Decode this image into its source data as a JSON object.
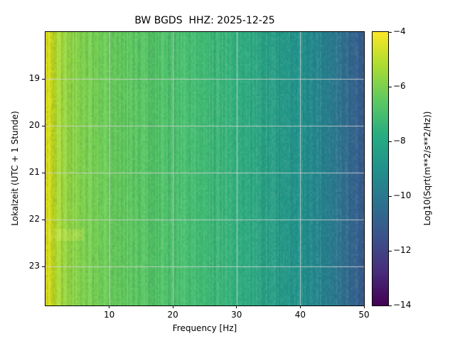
{
  "figure": {
    "title": "BW BGDS  HHZ: 2025-12-25",
    "background_color": "#ffffff"
  },
  "chart_data": {
    "type": "heatmap",
    "subtype": "spectrogram",
    "title": "BW BGDS  HHZ: 2025-12-25",
    "xlabel": "Frequency [Hz]",
    "ylabel": "Lokalzeit (UTC + 1 Stunde)",
    "x_ticks": [
      10,
      20,
      30,
      40,
      50
    ],
    "y_ticks": [
      19,
      20,
      21,
      22,
      23
    ],
    "x_range_hz": [
      0,
      50
    ],
    "y_range_hours": [
      18.0,
      23.83
    ],
    "grid": true,
    "grid_color": "#d3d3d3",
    "colormap": "viridis",
    "freq_profile": [
      {
        "hz": 0,
        "color": "#ece51b"
      },
      {
        "hz": 0.7,
        "color": "#d8e219"
      },
      {
        "hz": 1.6,
        "color": "#b5dd2b"
      },
      {
        "hz": 3,
        "color": "#97d83e"
      },
      {
        "hz": 6,
        "color": "#7ed34f"
      },
      {
        "hz": 10,
        "color": "#6ace5b"
      },
      {
        "hz": 15,
        "color": "#5ac864"
      },
      {
        "hz": 20,
        "color": "#4cc26c"
      },
      {
        "hz": 26,
        "color": "#3db976"
      },
      {
        "hz": 31,
        "color": "#2fad80"
      },
      {
        "hz": 36,
        "color": "#279d87"
      },
      {
        "hz": 40,
        "color": "#21918c"
      },
      {
        "hz": 44,
        "color": "#27818e"
      },
      {
        "hz": 47,
        "color": "#2f6d8e"
      },
      {
        "hz": 50,
        "color": "#375a8c"
      }
    ],
    "colorbar": {
      "label": "Log10(Sqrt(m**2/s**2/Hz))",
      "ticks": [
        -4,
        -6,
        -8,
        -10,
        -12,
        -14
      ],
      "vmax": -4,
      "vmin": -14,
      "stops": [
        {
          "pos": 0.0,
          "color": "#fde725"
        },
        {
          "pos": 0.125,
          "color": "#aadc32"
        },
        {
          "pos": 0.25,
          "color": "#5ec962"
        },
        {
          "pos": 0.375,
          "color": "#27ad81"
        },
        {
          "pos": 0.5,
          "color": "#21918c"
        },
        {
          "pos": 0.625,
          "color": "#2c728e"
        },
        {
          "pos": 0.75,
          "color": "#3b528b"
        },
        {
          "pos": 0.875,
          "color": "#472d7b"
        },
        {
          "pos": 1.0,
          "color": "#440154"
        }
      ]
    },
    "visible_features": [
      {
        "type": "bright-band",
        "time_hours": [
          22.2,
          22.45
        ],
        "freq_hz": [
          0.5,
          6
        ]
      }
    ]
  }
}
